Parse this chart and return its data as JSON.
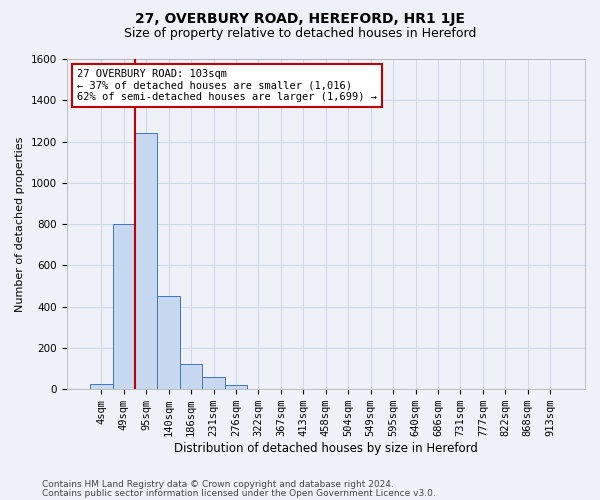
{
  "title1": "27, OVERBURY ROAD, HEREFORD, HR1 1JE",
  "title2": "Size of property relative to detached houses in Hereford",
  "xlabel": "Distribution of detached houses by size in Hereford",
  "ylabel": "Number of detached properties",
  "bar_labels": [
    "4sqm",
    "49sqm",
    "95sqm",
    "140sqm",
    "186sqm",
    "231sqm",
    "276sqm",
    "322sqm",
    "367sqm",
    "413sqm",
    "458sqm",
    "504sqm",
    "549sqm",
    "595sqm",
    "640sqm",
    "686sqm",
    "731sqm",
    "777sqm",
    "822sqm",
    "868sqm",
    "913sqm"
  ],
  "bar_values": [
    25,
    800,
    1240,
    450,
    120,
    60,
    20,
    0,
    0,
    0,
    0,
    0,
    0,
    0,
    0,
    0,
    0,
    0,
    0,
    0,
    0
  ],
  "bar_color": "#c6d9f0",
  "bar_edge_color": "#4472c4",
  "ylim": [
    0,
    1600
  ],
  "yticks": [
    0,
    200,
    400,
    600,
    800,
    1000,
    1200,
    1400,
    1600
  ],
  "vline_x": 1.5,
  "vline_color": "#c00000",
  "annotation_text": "27 OVERBURY ROAD: 103sqm\n← 37% of detached houses are smaller (1,016)\n62% of semi-detached houses are larger (1,699) →",
  "annotation_box_color": "white",
  "annotation_box_edge": "#c00000",
  "footer1": "Contains HM Land Registry data © Crown copyright and database right 2024.",
  "footer2": "Contains public sector information licensed under the Open Government Licence v3.0.",
  "bg_color": "#eef2f8",
  "plot_bg_color": "#eef2f8",
  "grid_color": "#d0d8e8",
  "title1_fontsize": 10,
  "title2_fontsize": 9,
  "xlabel_fontsize": 8.5,
  "ylabel_fontsize": 8,
  "tick_fontsize": 7.5,
  "annotation_fontsize": 7.5,
  "footer_fontsize": 6.5
}
